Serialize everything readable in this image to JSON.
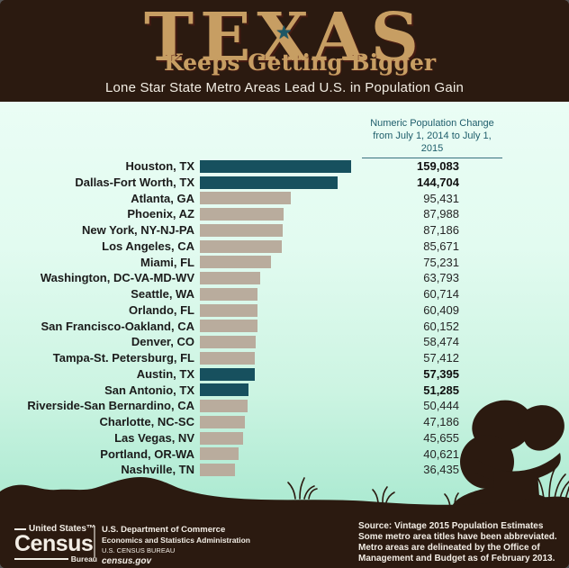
{
  "header": {
    "title": "TEXAS",
    "star_glyph": "★",
    "subtitle": "Keeps Getting Bigger",
    "tagline": "Lone Star State Metro Areas Lead U.S. in Population Gain"
  },
  "chart_data": {
    "type": "bar",
    "orientation": "horizontal",
    "title": "Lone Star State Metro Areas Lead U.S. in Population Gain",
    "value_header": {
      "line1": "Numeric Population Change",
      "line2": "from July 1, 2014 to July 1, 2015"
    },
    "categories": [
      "Houston, TX",
      "Dallas-Fort Worth, TX",
      "Atlanta, GA",
      "Phoenix, AZ",
      "New York, NY-NJ-PA",
      "Los Angeles, CA",
      "Miami, FL",
      "Washington, DC-VA-MD-WV",
      "Seattle, WA",
      "Orlando, FL",
      "San Francisco-Oakland, CA",
      "Denver, CO",
      "Tampa-St. Petersburg, FL",
      "Austin, TX",
      "San Antonio, TX",
      "Riverside-San Bernardino, CA",
      "Charlotte, NC-SC",
      "Las Vegas, NV",
      "Portland, OR-WA",
      "Nashville, TN"
    ],
    "values": [
      159083,
      144704,
      95431,
      87988,
      87186,
      85671,
      75231,
      63793,
      60714,
      60409,
      60152,
      58474,
      57412,
      57395,
      51285,
      50444,
      47186,
      45655,
      40621,
      36435
    ],
    "value_labels": [
      "159,083",
      "144,704",
      "95,431",
      "87,988",
      "87,186",
      "85,671",
      "75,231",
      "63,793",
      "60,714",
      "60,409",
      "60,152",
      "58,474",
      "57,412",
      "57,395",
      "51,285",
      "50,444",
      "47,186",
      "45,655",
      "40,621",
      "36,435"
    ],
    "highlight_texas": [
      true,
      true,
      false,
      false,
      false,
      false,
      false,
      false,
      false,
      false,
      false,
      false,
      false,
      true,
      true,
      false,
      false,
      false,
      false,
      false
    ],
    "xlim": [
      0,
      159083
    ],
    "colors": {
      "texas_bar": "#17505E",
      "other_bar": "#B9AC9D",
      "value_header_text": "#1E5D6B"
    }
  },
  "footer": {
    "logo": {
      "top": "United States™",
      "main": "Census",
      "bottom": "Bureau"
    },
    "agency_lines": [
      "U.S. Department of Commerce",
      "Economics and Statistics Administration",
      "U.S. CENSUS BUREAU",
      "census.gov"
    ],
    "source_lines": [
      "Source: Vintage 2015 Population Estimates",
      "Some metro area titles have been abbreviated.",
      "Metro areas are delineated by the Office of",
      "Management and Budget as of February 2013."
    ]
  },
  "colors": {
    "background_brown": "#2B1A10",
    "title_tan": "#C79E63",
    "star_teal": "#1D5766",
    "chart_bg_top": "#EAFDF5",
    "chart_bg_bottom": "#A9E9D0"
  }
}
